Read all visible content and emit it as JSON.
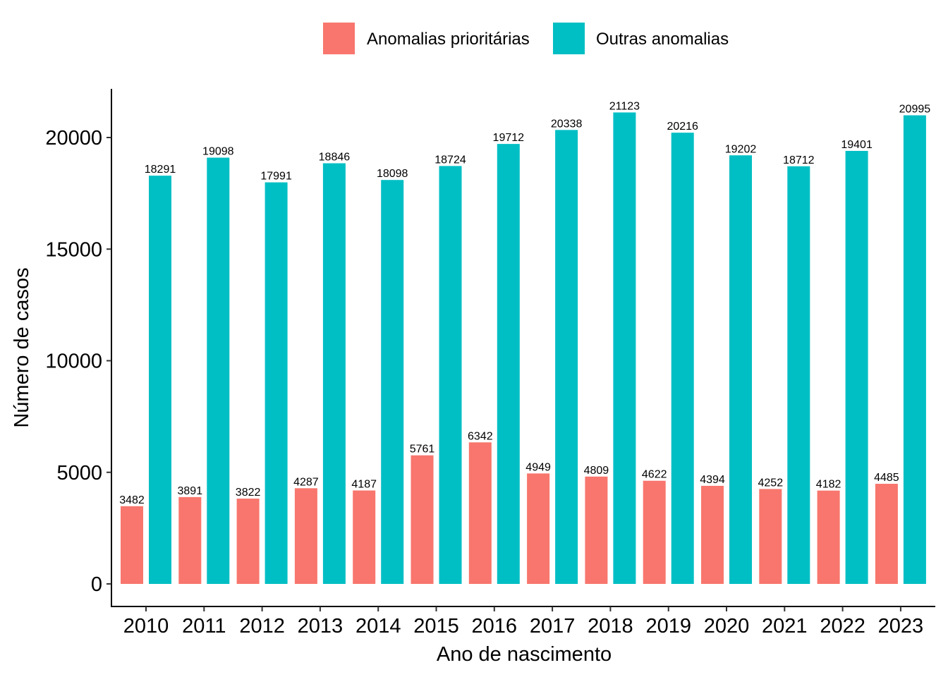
{
  "chart_data": {
    "type": "bar",
    "xlabel": "Ano de nascimento",
    "ylabel": "Número de casos",
    "ylim": [
      0,
      22000
    ],
    "yticks": [
      0,
      5000,
      10000,
      15000,
      20000
    ],
    "grid": false,
    "legend_position": "top",
    "categories": [
      "2010",
      "2011",
      "2012",
      "2013",
      "2014",
      "2015",
      "2016",
      "2017",
      "2018",
      "2019",
      "2020",
      "2021",
      "2022",
      "2023"
    ],
    "series": [
      {
        "name": "Anomalias prioritárias",
        "color": "#F8766D",
        "values": [
          3482,
          3891,
          3822,
          4287,
          4187,
          5761,
          6342,
          4949,
          4809,
          4622,
          4394,
          4252,
          4182,
          4485
        ]
      },
      {
        "name": "Outras anomalias",
        "color": "#00BFC4",
        "values": [
          18291,
          19098,
          17991,
          18846,
          18098,
          18724,
          19712,
          20338,
          21123,
          20216,
          19202,
          18712,
          19401,
          20995
        ]
      }
    ]
  }
}
